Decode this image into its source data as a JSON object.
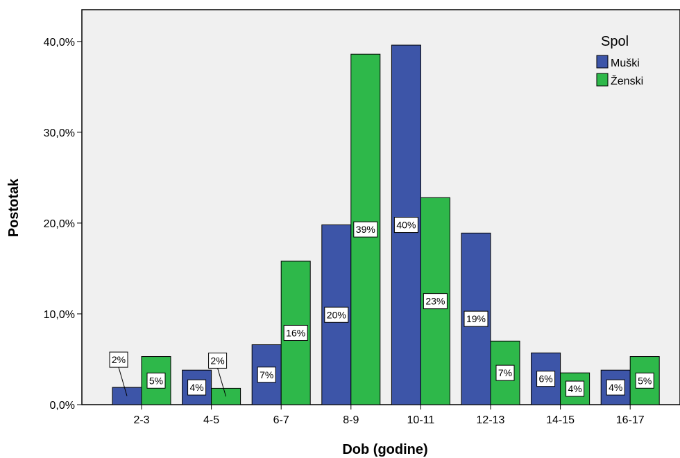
{
  "chart_data": {
    "type": "bar",
    "title": "",
    "xlabel": "Dob (godine)",
    "ylabel": "Postotak",
    "categories": [
      "2-3",
      "4-5",
      "6-7",
      "8-9",
      "10-11",
      "12-13",
      "14-15",
      "16-17"
    ],
    "ylim": [
      0,
      43.5
    ],
    "yticks": [
      0,
      10,
      20,
      30,
      40
    ],
    "ytick_labels": [
      "0,0%",
      "10,0%",
      "20,0%",
      "30,0%",
      "40,0%"
    ],
    "grid": false,
    "legend": {
      "title": "Spol",
      "position": "top-right"
    },
    "series": [
      {
        "name": "Muški",
        "color": "#3d55a8",
        "values": [
          1.9,
          3.8,
          6.6,
          19.8,
          39.6,
          18.9,
          5.7,
          3.8
        ],
        "labels": [
          "2%",
          "4%",
          "7%",
          "20%",
          "40%",
          "19%",
          "6%",
          "4%"
        ]
      },
      {
        "name": "Ženski",
        "color": "#2eb84a",
        "values": [
          5.3,
          1.8,
          15.8,
          38.6,
          22.8,
          7.0,
          3.5,
          5.3
        ],
        "labels": [
          "5%",
          "2%",
          "16%",
          "39%",
          "23%",
          "7%",
          "4%",
          "5%"
        ]
      }
    ]
  }
}
